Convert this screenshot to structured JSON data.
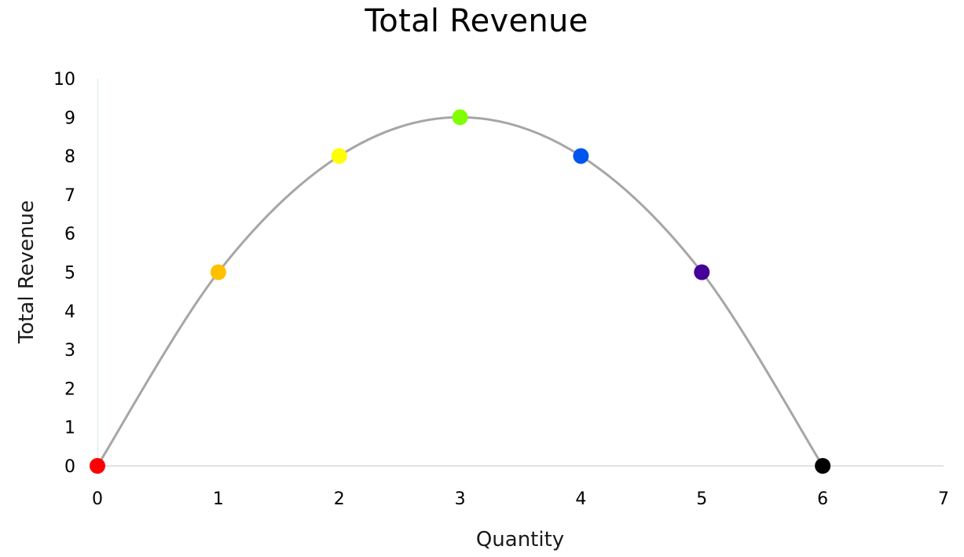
{
  "chart_data": {
    "type": "scatter",
    "title": "Total Revenue",
    "xlabel": "Quantity",
    "ylabel": "Total Revenue",
    "xlim": [
      0,
      7
    ],
    "ylim": [
      0,
      10
    ],
    "x_ticks": [
      "0",
      "1",
      "2",
      "3",
      "4",
      "5",
      "6",
      "7"
    ],
    "y_ticks": [
      "0",
      "1",
      "2",
      "3",
      "4",
      "5",
      "6",
      "7",
      "8",
      "9",
      "10"
    ],
    "grid": false,
    "legend": "none",
    "line_style": "smooth",
    "line_color": "#a6a6a6",
    "points": [
      {
        "x": 0,
        "y": 0,
        "color": "#ff0000"
      },
      {
        "x": 1,
        "y": 5,
        "color": "#ffc000"
      },
      {
        "x": 2,
        "y": 8,
        "color": "#ffff00"
      },
      {
        "x": 3,
        "y": 9,
        "color": "#7fff00"
      },
      {
        "x": 4,
        "y": 8,
        "color": "#0055ee"
      },
      {
        "x": 5,
        "y": 5,
        "color": "#440099"
      },
      {
        "x": 6,
        "y": 0,
        "color": "#000000"
      }
    ]
  }
}
